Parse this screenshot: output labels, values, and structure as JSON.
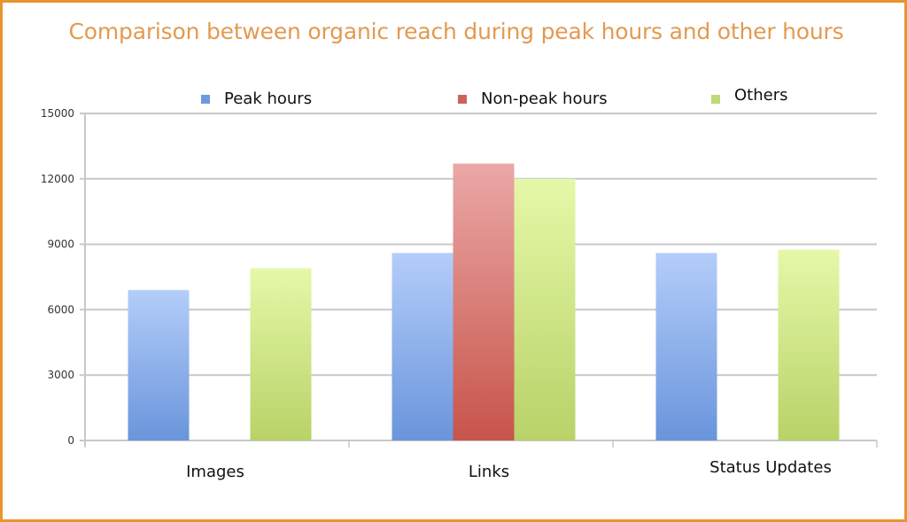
{
  "title": "Comparison between organic reach during peak hours and other hours",
  "legend": [
    {
      "label": "Peak hours",
      "color": "#6f9ae0"
    },
    {
      "label": "Non-peak hours",
      "color": "#cf625a"
    },
    {
      "label": "Others",
      "color": "#c1d976"
    }
  ],
  "y_axis_ticks": [
    "15000",
    "12000",
    "9000",
    "6000",
    "3000",
    "0"
  ],
  "categories": [
    "Images",
    "Links",
    "Status Updates"
  ],
  "colors": {
    "frame": "#e8952e",
    "title": "#e39a50",
    "grid": "#c8c8c8"
  },
  "chart_data": {
    "type": "bar",
    "title": "Comparison between organic reach during peak hours and other hours",
    "xlabel": "",
    "ylabel": "",
    "categories": [
      "Images",
      "Links",
      "Status Updates"
    ],
    "series": [
      {
        "name": "Peak hours",
        "values": [
          6900,
          8600,
          8600
        ]
      },
      {
        "name": "Non-peak hours",
        "values": [
          null,
          12700,
          null
        ]
      },
      {
        "name": "Others",
        "values": [
          7900,
          12000,
          8750
        ]
      }
    ],
    "ylim": [
      0,
      15000
    ],
    "yticks": [
      0,
      3000,
      6000,
      9000,
      12000,
      15000
    ],
    "grid": true,
    "legend_position": "top"
  }
}
